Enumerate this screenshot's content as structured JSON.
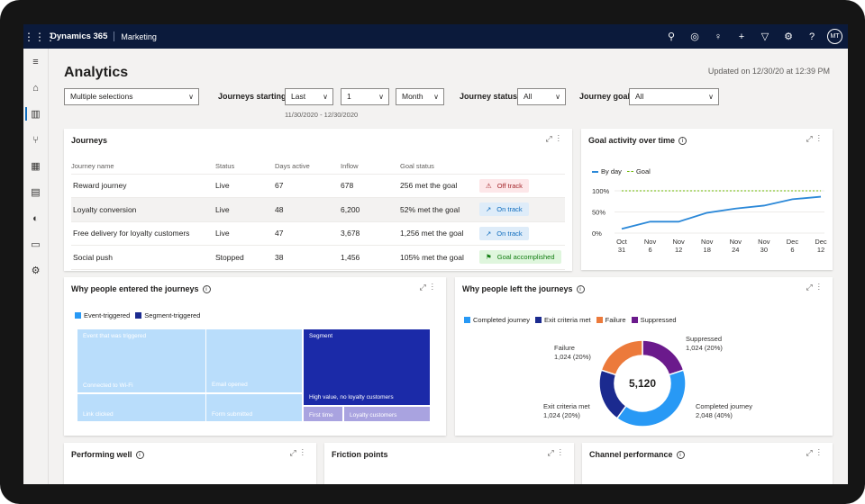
{
  "header": {
    "app_name": "Dynamics 365",
    "module": "Marketing",
    "avatar": "MT",
    "icons": [
      "search-icon",
      "target-icon",
      "lightbulb-icon",
      "plus-icon",
      "filter-icon",
      "settings-icon",
      "help-icon"
    ]
  },
  "nav": [
    "home-icon",
    "analytics-icon",
    "journeys-icon",
    "grid-icon",
    "inbox-icon",
    "globe-icon",
    "map-icon",
    "settings-icon"
  ],
  "page": {
    "title": "Analytics",
    "updated": "Updated on 12/30/20 at 12:39 PM"
  },
  "filters": {
    "multi": "Multiple selections",
    "journeys_starting_label": "Journeys starting",
    "starting_mode": "Last",
    "starting_count": "1",
    "starting_unit": "Month",
    "date_range": "11/30/2020 - 12/30/2020",
    "status_label": "Journey status",
    "status_value": "All",
    "goal_label": "Journey goal",
    "goal_value": "All"
  },
  "journeys": {
    "title": "Journeys",
    "columns": [
      "Journey name",
      "Status",
      "Days active",
      "Inflow",
      "Goal status"
    ],
    "rows": [
      {
        "name": "Reward journey",
        "status": "Live",
        "days": "67",
        "inflow": "678",
        "goal": "256 met the goal",
        "badge": "Off track",
        "tone": "red",
        "icon": "⚠"
      },
      {
        "name": "Loyalty conversion",
        "status": "Live",
        "days": "48",
        "inflow": "6,200",
        "goal": "52% met the goal",
        "badge": "On track",
        "tone": "blue",
        "icon": "↗"
      },
      {
        "name": "Free delivery for loyalty customers",
        "status": "Live",
        "days": "47",
        "inflow": "3,678",
        "goal": "1,256 met the goal",
        "badge": "On track",
        "tone": "blue",
        "icon": "↗"
      },
      {
        "name": "Social push",
        "status": "Stopped",
        "days": "38",
        "inflow": "1,456",
        "goal": "105% met the goal",
        "badge": "Goal accomplished",
        "tone": "green",
        "icon": "⚑"
      }
    ]
  },
  "goal_activity": {
    "title": "Goal activity over time",
    "legend_byday": "By day",
    "legend_goal": "Goal",
    "colors": {
      "byday": "#2b88d8",
      "goal": "#6bb700"
    }
  },
  "entered": {
    "title": "Why people entered the journeys",
    "legend": [
      "Event-triggered",
      "Segment-triggered"
    ],
    "cells": [
      "Event that was triggered",
      "Connected to Wi-Fi",
      "Email opened",
      "Link clicked",
      "Form submitted",
      "Segment",
      "High value, no loyalty customers",
      "First time",
      "Loyalty customers"
    ]
  },
  "left": {
    "title": "Why people left the journeys",
    "legend": [
      "Completed journey",
      "Exit criteria met",
      "Failure",
      "Suppressed"
    ],
    "total": "5,120",
    "slices": [
      {
        "name": "Completed journey",
        "value": "2,048 (40%)",
        "pct": 40,
        "color": "#2899f5"
      },
      {
        "name": "Exit criteria met",
        "value": "1,024 (20%)",
        "pct": 20,
        "color": "#1b2a8f"
      },
      {
        "name": "Failure",
        "value": "1,024 (20%)",
        "pct": 20,
        "color": "#ec7a3b"
      },
      {
        "name": "Suppressed",
        "value": "1,024 (20%)",
        "pct": 20,
        "color": "#6b1a8c"
      }
    ]
  },
  "bottom": {
    "performing": "Performing well",
    "friction": "Friction points",
    "channel": "Channel performance"
  },
  "chart_data": {
    "type": "line",
    "title": "Goal activity over time",
    "x": [
      "Oct 31",
      "Nov 6",
      "Nov 12",
      "Nov 18",
      "Nov 24",
      "Nov 30",
      "Dec 6",
      "Dec 12"
    ],
    "yticks": [
      "0%",
      "50%",
      "100%"
    ],
    "ylim": [
      0,
      100
    ],
    "series": [
      {
        "name": "By day",
        "values": [
          10,
          27,
          27,
          48,
          58,
          65,
          80,
          86
        ]
      },
      {
        "name": "Goal",
        "values": [
          100,
          100,
          100,
          100,
          100,
          100,
          100,
          100
        ]
      }
    ]
  }
}
